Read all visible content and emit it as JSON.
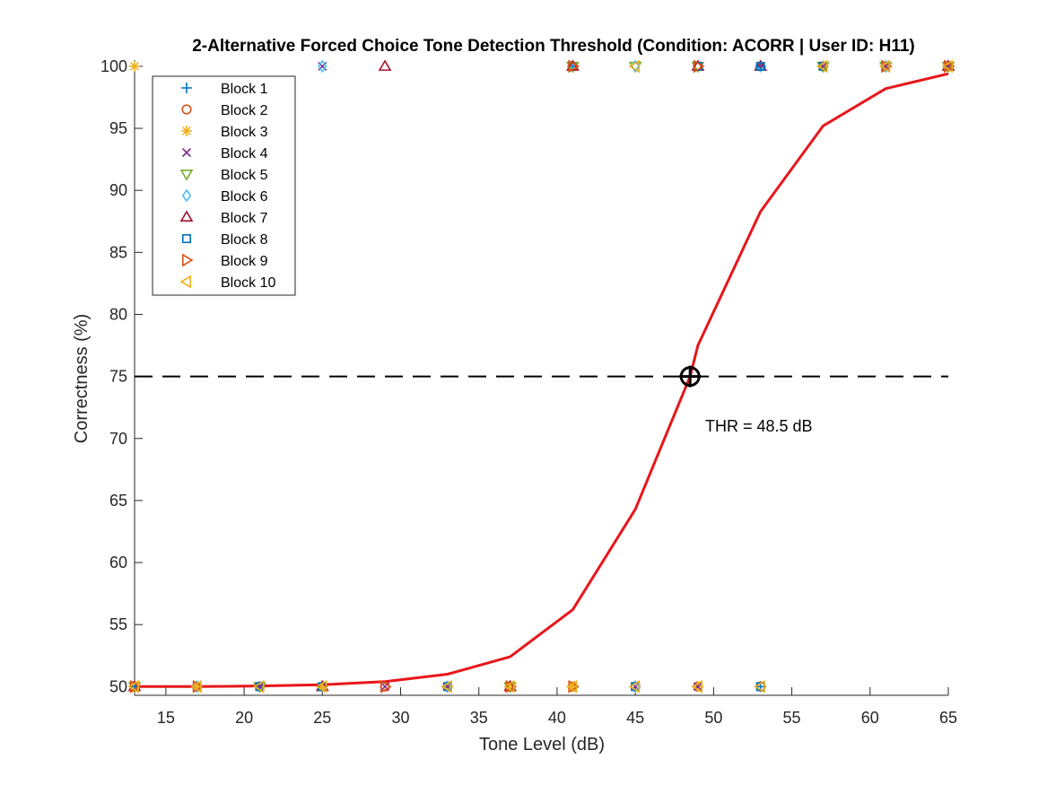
{
  "chart_data": {
    "type": "scatter",
    "title": "2-Alternative Forced Choice Tone Detection Threshold (Condition: ACORR | User ID: H11)",
    "xlabel": "Tone Level (dB)",
    "ylabel": "Correctness (%)",
    "xlim": [
      13,
      65
    ],
    "ylim": [
      49.3,
      100.5
    ],
    "xticks": [
      15,
      20,
      25,
      30,
      35,
      40,
      45,
      50,
      55,
      60,
      65
    ],
    "yticks": [
      50,
      55,
      60,
      65,
      70,
      75,
      80,
      85,
      90,
      95,
      100
    ],
    "grid": false,
    "legend_position": "top-left",
    "annotation": "THR = 48.5 dB",
    "threshold": {
      "x": 48.5,
      "y": 75
    },
    "reference_line": {
      "y": 75,
      "x_range": [
        13,
        65
      ],
      "style": "dashed"
    },
    "fit_curve": {
      "name": "",
      "color": "#e8161b",
      "x": [
        13,
        17,
        21,
        25,
        29,
        33,
        37,
        41,
        45,
        48.5,
        49,
        53,
        57,
        61,
        65
      ],
      "y": [
        50.0,
        50.0,
        50.05,
        50.15,
        50.4,
        51.0,
        52.4,
        56.2,
        64.3,
        75.0,
        77.5,
        88.3,
        95.2,
        98.2,
        99.4
      ]
    },
    "series": [
      {
        "name": "Block 1",
        "marker": "plus",
        "color": "#0072bd",
        "points": [
          [
            13,
            50
          ],
          [
            21,
            50
          ],
          [
            25,
            50
          ],
          [
            33,
            50
          ],
          [
            41,
            50
          ],
          [
            53,
            50
          ],
          [
            41,
            100
          ],
          [
            53,
            100
          ],
          [
            57,
            100
          ]
        ]
      },
      {
        "name": "Block 2",
        "marker": "circle",
        "color": "#d95319",
        "points": [
          [
            17,
            50
          ],
          [
            21,
            50
          ],
          [
            29,
            50
          ],
          [
            33,
            50
          ],
          [
            37,
            50
          ],
          [
            41,
            50
          ],
          [
            45,
            50
          ],
          [
            49,
            50
          ],
          [
            53,
            50
          ],
          [
            41,
            100
          ],
          [
            49,
            100
          ],
          [
            57,
            100
          ],
          [
            61,
            100
          ],
          [
            65,
            100
          ]
        ]
      },
      {
        "name": "Block 3",
        "marker": "asterisk",
        "color": "#edb120",
        "points": [
          [
            13,
            100
          ],
          [
            17,
            50
          ],
          [
            25,
            50
          ],
          [
            33,
            50
          ],
          [
            37,
            50
          ],
          [
            41,
            50
          ],
          [
            49,
            50
          ],
          [
            57,
            100
          ],
          [
            61,
            100
          ],
          [
            65,
            100
          ]
        ]
      },
      {
        "name": "Block 4",
        "marker": "x",
        "color": "#7e2f8e",
        "points": [
          [
            21,
            50
          ],
          [
            25,
            100
          ],
          [
            29,
            50
          ],
          [
            33,
            50
          ],
          [
            45,
            50
          ],
          [
            49,
            50
          ],
          [
            53,
            100
          ],
          [
            57,
            100
          ],
          [
            61,
            100
          ],
          [
            65,
            100
          ]
        ]
      },
      {
        "name": "Block 5",
        "marker": "triangle-down",
        "color": "#77ac30",
        "points": [
          [
            13,
            50
          ],
          [
            21,
            50
          ],
          [
            37,
            50
          ],
          [
            41,
            100
          ],
          [
            45,
            100
          ],
          [
            49,
            100
          ],
          [
            57,
            100
          ],
          [
            61,
            100
          ],
          [
            65,
            100
          ]
        ]
      },
      {
        "name": "Block 6",
        "marker": "diamond",
        "color": "#4dbeee",
        "points": [
          [
            25,
            100
          ],
          [
            17,
            50
          ],
          [
            33,
            50
          ],
          [
            45,
            50
          ],
          [
            45,
            100
          ],
          [
            53,
            100
          ],
          [
            61,
            100
          ]
        ]
      },
      {
        "name": "Block 7",
        "marker": "triangle-up",
        "color": "#a2142f",
        "points": [
          [
            29,
            100
          ],
          [
            13,
            50
          ],
          [
            25,
            50
          ],
          [
            37,
            50
          ],
          [
            41,
            100
          ],
          [
            49,
            100
          ],
          [
            53,
            100
          ],
          [
            65,
            100
          ]
        ]
      },
      {
        "name": "Block 8",
        "marker": "square",
        "color": "#0072bd",
        "points": [
          [
            21,
            50
          ],
          [
            25,
            50
          ],
          [
            33,
            50
          ],
          [
            45,
            50
          ],
          [
            53,
            50
          ],
          [
            49,
            100
          ],
          [
            53,
            100
          ],
          [
            57,
            100
          ]
        ]
      },
      {
        "name": "Block 9",
        "marker": "triangle-right",
        "color": "#d95319",
        "points": [
          [
            13,
            50
          ],
          [
            17,
            50
          ],
          [
            29,
            50
          ],
          [
            37,
            50
          ],
          [
            41,
            50
          ],
          [
            41,
            100
          ],
          [
            49,
            100
          ],
          [
            61,
            100
          ],
          [
            65,
            100
          ]
        ]
      },
      {
        "name": "Block 10",
        "marker": "triangle-left",
        "color": "#edb120",
        "points": [
          [
            13,
            50
          ],
          [
            17,
            50
          ],
          [
            21,
            50
          ],
          [
            25,
            50
          ],
          [
            33,
            50
          ],
          [
            37,
            50
          ],
          [
            41,
            50
          ],
          [
            45,
            50
          ],
          [
            49,
            50
          ],
          [
            53,
            50
          ],
          [
            45,
            100
          ],
          [
            57,
            100
          ],
          [
            61,
            100
          ],
          [
            65,
            100
          ]
        ]
      }
    ]
  }
}
